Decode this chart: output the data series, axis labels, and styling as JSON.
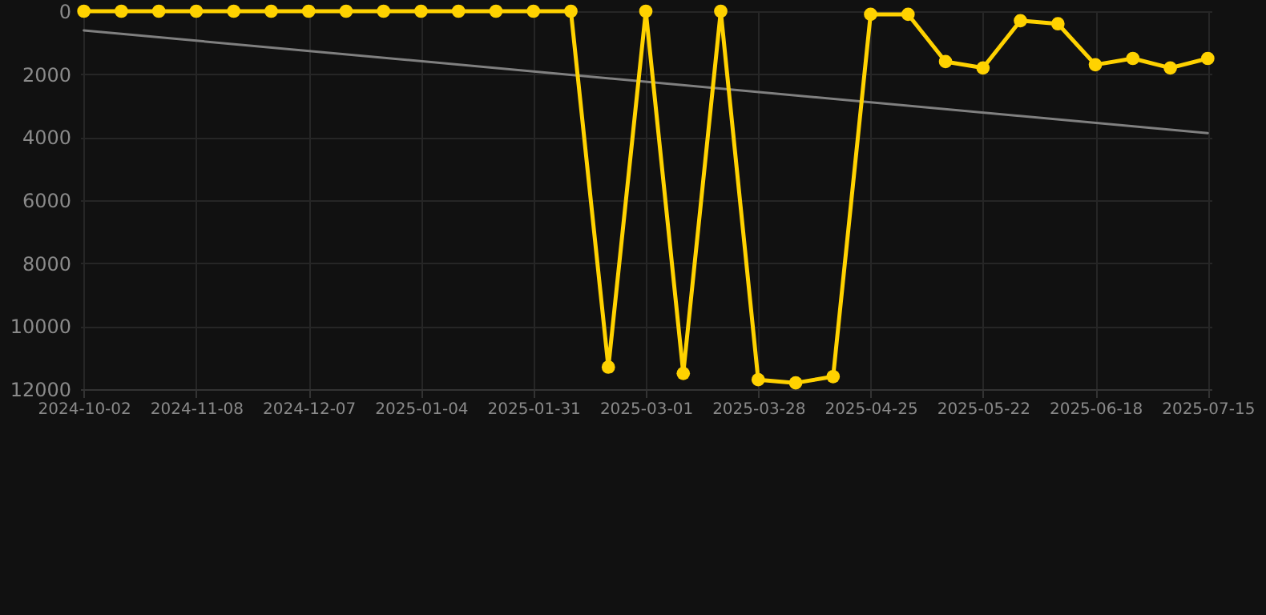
{
  "chart_data": {
    "type": "line",
    "marker": "circle",
    "grid": true,
    "categories": [
      "2024-10-02",
      null,
      null,
      "2024-11-08",
      null,
      null,
      "2024-12-07",
      null,
      null,
      "2025-01-04",
      null,
      null,
      "2025-01-31",
      null,
      null,
      "2025-03-01",
      null,
      null,
      "2025-03-28",
      null,
      null,
      "2025-04-25",
      null,
      null,
      "2025-05-22",
      null,
      null,
      "2025-06-18",
      null,
      null,
      "2025-07-15"
    ],
    "ylim": [
      12000,
      0
    ],
    "yticks": [
      0,
      2000,
      4000,
      6000,
      8000,
      10000,
      12000
    ],
    "series": [
      {
        "type": "line",
        "marker": "none",
        "color": "#808080",
        "values": [
          610,
          null,
          null,
          null,
          null,
          null,
          null,
          null,
          null,
          null,
          null,
          null,
          null,
          null,
          null,
          null,
          null,
          null,
          null,
          null,
          null,
          null,
          null,
          null,
          null,
          null,
          null,
          null,
          null,
          null,
          3870
        ]
      },
      {
        "color": "#ffd200",
        "values": [
          0,
          0,
          0,
          0,
          0,
          0,
          0,
          0,
          0,
          0,
          0,
          0,
          0,
          0,
          11300,
          0,
          11500,
          0,
          11700,
          11800,
          11600,
          100,
          100,
          1600,
          1800,
          300,
          400,
          1700,
          1500,
          1800,
          1500
        ]
      }
    ]
  }
}
